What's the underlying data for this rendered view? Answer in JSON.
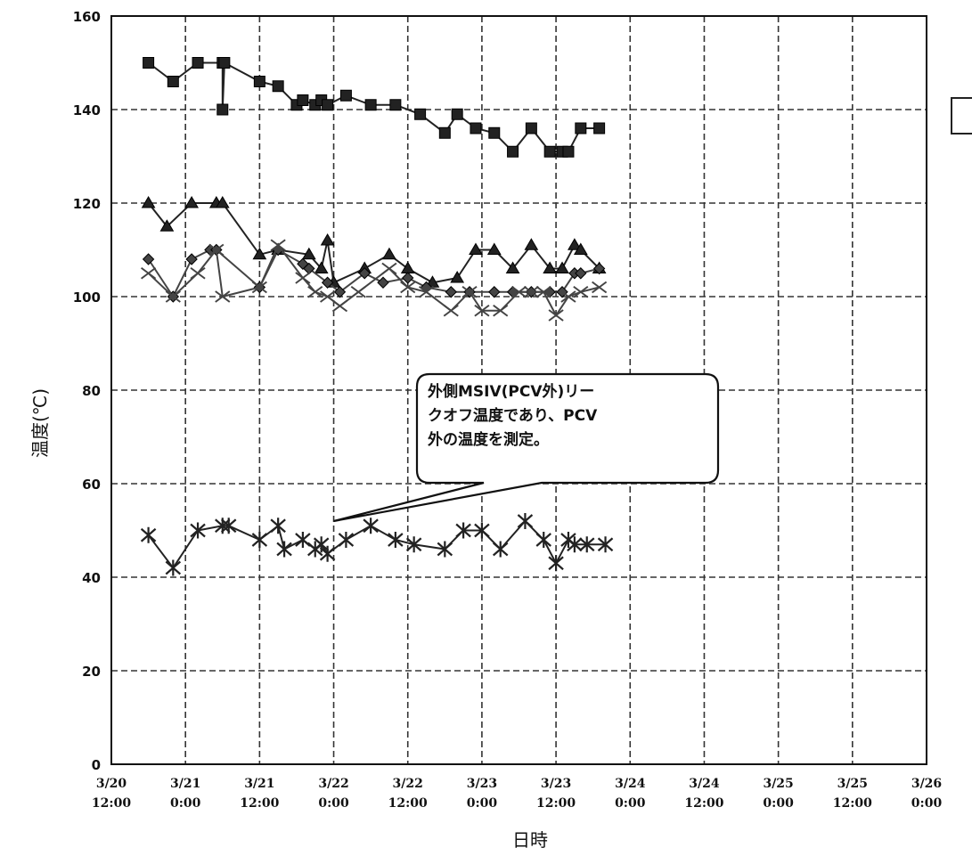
{
  "chart_data": {
    "type": "line",
    "xlabel": "日時",
    "ylabel": "温度(℃)",
    "ylim": [
      0,
      160
    ],
    "yticks": [
      0,
      20,
      40,
      60,
      80,
      100,
      120,
      140,
      160
    ],
    "xlim": [
      "3/20 12:00",
      "3/26 0:00"
    ],
    "xticks": [
      {
        "l1": "3/20",
        "l2": "12:00"
      },
      {
        "l1": "3/21",
        "l2": "0:00"
      },
      {
        "l1": "3/21",
        "l2": "12:00"
      },
      {
        "l1": "3/22",
        "l2": "0:00"
      },
      {
        "l1": "3/22",
        "l2": "12:00"
      },
      {
        "l1": "3/23",
        "l2": "0:00"
      },
      {
        "l1": "3/23",
        "l2": "12:00"
      },
      {
        "l1": "3/24",
        "l2": "0:00"
      },
      {
        "l1": "3/24",
        "l2": "12:00"
      },
      {
        "l1": "3/25",
        "l2": "0:00"
      },
      {
        "l1": "3/25",
        "l2": "12:00"
      },
      {
        "l1": "3/26",
        "l2": "0:00"
      }
    ],
    "x_unit": "hours after 3/20 12:00",
    "grid": true,
    "annotation": {
      "lines": [
        "外側MSIV(PCV外)リー",
        "クオフ温度であり、PCV",
        "外の温度を測定。"
      ],
      "points_to": {
        "x": 36,
        "y": 52
      }
    },
    "series": [
      {
        "marker": "square",
        "color": "#222222",
        "points": [
          [
            6,
            150
          ],
          [
            10,
            146
          ],
          [
            14,
            150
          ],
          [
            18,
            150
          ],
          [
            18,
            140
          ],
          [
            18.3,
            150
          ],
          [
            24,
            146
          ],
          [
            27,
            145
          ],
          [
            30,
            141
          ],
          [
            31,
            142
          ],
          [
            33,
            141
          ],
          [
            34,
            142
          ],
          [
            35,
            141
          ],
          [
            38,
            143
          ],
          [
            42,
            141
          ],
          [
            46,
            141
          ],
          [
            50,
            139
          ],
          [
            54,
            135
          ],
          [
            56,
            139
          ],
          [
            59,
            136
          ],
          [
            62,
            135
          ],
          [
            65,
            131
          ],
          [
            68,
            136
          ],
          [
            71,
            131
          ],
          [
            73,
            131
          ],
          [
            74,
            131
          ],
          [
            76,
            136
          ],
          [
            79,
            136
          ]
        ]
      },
      {
        "marker": "triangle",
        "color": "#222222",
        "points": [
          [
            6,
            120
          ],
          [
            9,
            115
          ],
          [
            13,
            120
          ],
          [
            17,
            120
          ],
          [
            18,
            120
          ],
          [
            24,
            109
          ],
          [
            27,
            110
          ],
          [
            32,
            109
          ],
          [
            34,
            106
          ],
          [
            35,
            112
          ],
          [
            36,
            103
          ],
          [
            41,
            106
          ],
          [
            45,
            109
          ],
          [
            48,
            106
          ],
          [
            52,
            103
          ],
          [
            56,
            104
          ],
          [
            59,
            110
          ],
          [
            62,
            110
          ],
          [
            65,
            106
          ],
          [
            68,
            111
          ],
          [
            71,
            106
          ],
          [
            73,
            106
          ],
          [
            75,
            111
          ],
          [
            76,
            110
          ],
          [
            79,
            106
          ]
        ]
      },
      {
        "marker": "diamond",
        "color": "#444444",
        "points": [
          [
            6,
            108
          ],
          [
            10,
            100
          ],
          [
            13,
            108
          ],
          [
            16,
            110
          ],
          [
            17,
            110
          ],
          [
            24,
            102
          ],
          [
            27,
            110
          ],
          [
            31,
            107
          ],
          [
            32,
            106
          ],
          [
            35,
            103
          ],
          [
            37,
            101
          ],
          [
            41,
            105
          ],
          [
            44,
            103
          ],
          [
            48,
            104
          ],
          [
            51,
            102
          ],
          [
            55,
            101
          ],
          [
            58,
            101
          ],
          [
            62,
            101
          ],
          [
            65,
            101
          ],
          [
            68,
            101
          ],
          [
            71,
            101
          ],
          [
            73,
            101
          ],
          [
            75,
            105
          ],
          [
            76,
            105
          ],
          [
            79,
            106
          ]
        ]
      },
      {
        "marker": "x",
        "color": "#444444",
        "points": [
          [
            6,
            105
          ],
          [
            10,
            100
          ],
          [
            14,
            105
          ],
          [
            17,
            110
          ],
          [
            18,
            100
          ],
          [
            24,
            102
          ],
          [
            27,
            111
          ],
          [
            31,
            104
          ],
          [
            33,
            101
          ],
          [
            35,
            100
          ],
          [
            37,
            98
          ],
          [
            40,
            101
          ],
          [
            45,
            106
          ],
          [
            48,
            102
          ],
          [
            51,
            101
          ],
          [
            55,
            97
          ],
          [
            58,
            101
          ],
          [
            60,
            97
          ],
          [
            63,
            97
          ],
          [
            66,
            101
          ],
          [
            68,
            101
          ],
          [
            70,
            101
          ],
          [
            72,
            96
          ],
          [
            74,
            100
          ],
          [
            76,
            101
          ],
          [
            79,
            102
          ]
        ]
      },
      {
        "marker": "star",
        "color": "#222222",
        "points": [
          [
            6,
            49
          ],
          [
            10,
            42
          ],
          [
            14,
            50
          ],
          [
            18,
            51
          ],
          [
            19,
            51
          ],
          [
            24,
            48
          ],
          [
            27,
            51
          ],
          [
            28,
            46
          ],
          [
            31,
            48
          ],
          [
            33,
            46
          ],
          [
            34,
            47
          ],
          [
            35,
            45
          ],
          [
            38,
            48
          ],
          [
            42,
            51
          ],
          [
            46,
            48
          ],
          [
            49,
            47
          ],
          [
            54,
            46
          ],
          [
            57,
            50
          ],
          [
            60,
            50
          ],
          [
            63,
            46
          ],
          [
            67,
            52
          ],
          [
            70,
            48
          ],
          [
            72,
            43
          ],
          [
            74,
            48
          ],
          [
            75,
            47
          ],
          [
            77,
            47
          ],
          [
            80,
            47
          ]
        ]
      }
    ]
  }
}
